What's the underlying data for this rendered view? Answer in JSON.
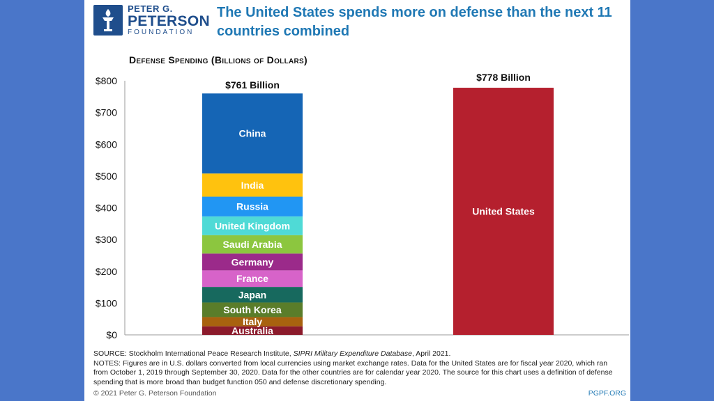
{
  "logo": {
    "line1": "PETER G.",
    "line2": "PETERSON",
    "line3": "FOUNDATION",
    "icon": "torch-icon"
  },
  "headline": "The United States spends more on defense than the next 11 countries combined",
  "footer": {
    "source_prefix": "SOURCE: Stockholm International Peace Research Institute, ",
    "source_title": "SIPRI Military Expenditure Database",
    "source_suffix": ", April 2021.",
    "notes": "NOTES: Figures are in U.S. dollars converted from local currencies using market exchange rates. Data for the United States are for fiscal year 2020, which ran from October 1, 2019 through September 30, 2020. Data for the other countries are for calendar year 2020. The source for this chart uses a definition of defense spending that is more broad than budget function 050 and defense discretionary spending.",
    "copyright": "© 2021 Peter G. Peterson Foundation",
    "site": "PGPF.ORG"
  },
  "colors": {
    "background": "#4a76c9",
    "brand": "#1f4e8c",
    "headline": "#1f78b4"
  },
  "chart_data": {
    "type": "bar",
    "title": "Defense Spending (Billions of Dollars)",
    "ylim": [
      0,
      800
    ],
    "yticks": [
      0,
      100,
      200,
      300,
      400,
      500,
      600,
      700,
      800
    ],
    "ytick_labels": [
      "$0",
      "$100",
      "$200",
      "$300",
      "$400",
      "$500",
      "$600",
      "$700",
      "$800"
    ],
    "stacked_bar": {
      "total": 761,
      "total_label": "$761 Billion",
      "segments": [
        {
          "name": "Australia",
          "value": 27,
          "color": "#8b1a2b"
        },
        {
          "name": "Italy",
          "value": 29,
          "color": "#a8620f"
        },
        {
          "name": "South Korea",
          "value": 46,
          "color": "#5a7d2a"
        },
        {
          "name": "Japan",
          "value": 49,
          "color": "#17695e"
        },
        {
          "name": "France",
          "value": 52,
          "color": "#d763c9"
        },
        {
          "name": "Germany",
          "value": 53,
          "color": "#9b2a8a"
        },
        {
          "name": "Saudi Arabia",
          "value": 58,
          "color": "#8cc63f"
        },
        {
          "name": "United Kingdom",
          "value": 59,
          "color": "#4fdad6"
        },
        {
          "name": "Russia",
          "value": 62,
          "color": "#2196f3"
        },
        {
          "name": "India",
          "value": 73,
          "color": "#ffc20e"
        },
        {
          "name": "China",
          "value": 252,
          "color": "#1565b5"
        }
      ]
    },
    "single_bar": {
      "name": "United States",
      "value": 778,
      "label": "$778 Billion",
      "color": "#b5202e"
    }
  }
}
